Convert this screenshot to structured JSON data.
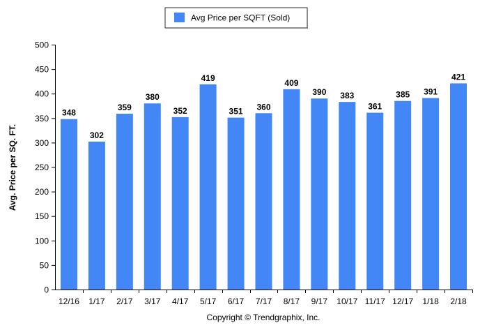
{
  "chart_data": {
    "type": "bar",
    "categories": [
      "12/16",
      "1/17",
      "2/17",
      "3/17",
      "4/17",
      "5/17",
      "6/17",
      "7/17",
      "8/17",
      "9/17",
      "10/17",
      "11/17",
      "12/17",
      "1/18",
      "2/18"
    ],
    "series": [
      {
        "name": "Avg Price per SQFT (Sold)",
        "values": [
          348,
          302,
          359,
          380,
          352,
          419,
          351,
          360,
          409,
          390,
          383,
          361,
          385,
          391,
          421
        ],
        "color": "#4287f5"
      }
    ],
    "ylabel": "Avg. Price per SQ. FT.",
    "ylim": [
      0,
      500
    ],
    "yticks": [
      0,
      50,
      100,
      150,
      200,
      250,
      300,
      350,
      400,
      450,
      500
    ],
    "grid": false,
    "legend_position": "top-center",
    "data_labels": true
  },
  "footer": {
    "copyright": "Copyright © Trendgraphix, Inc."
  }
}
